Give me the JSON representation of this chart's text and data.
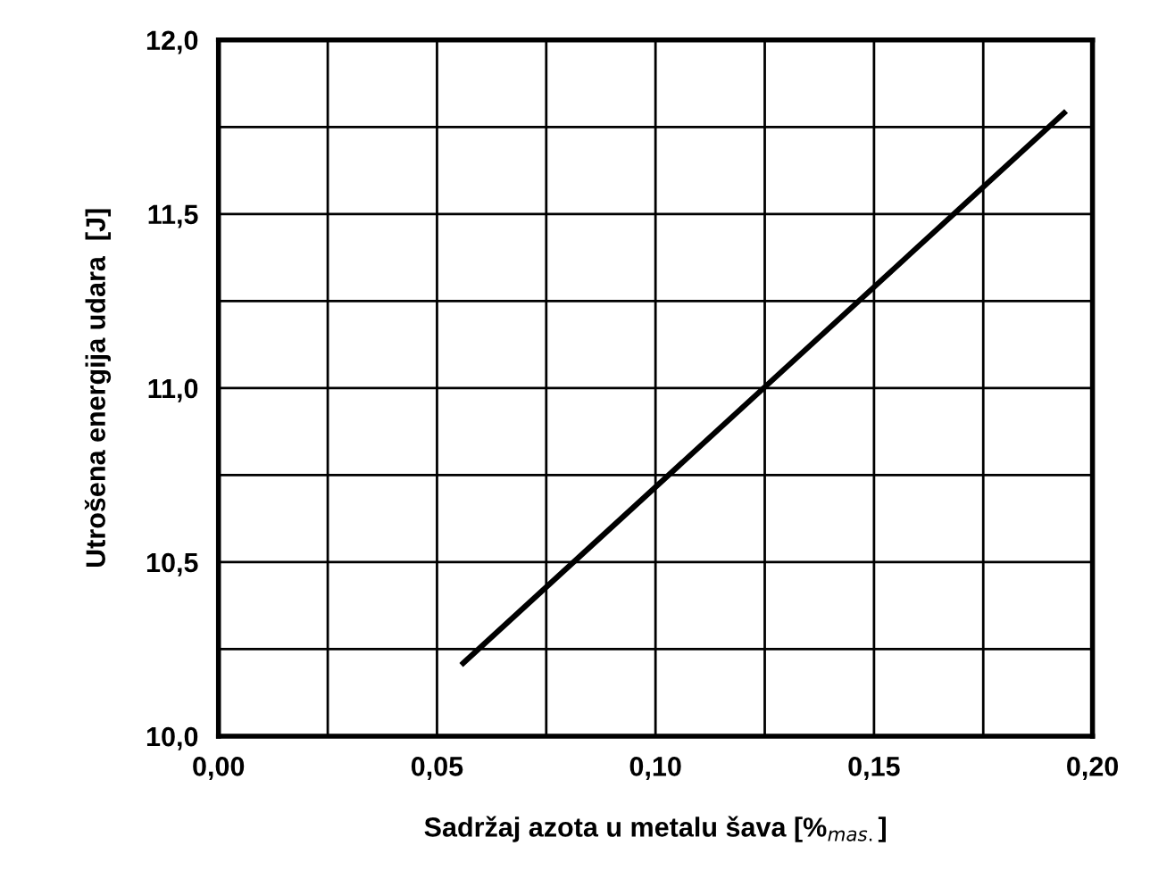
{
  "chart_data": {
    "type": "line",
    "xlabel": "Sadržaj azota u metalu šava [%$_{mas.}$]",
    "ylabel": "Utrošena energija udara  [J]",
    "series": [
      {
        "color": "#000000",
        "x": [
          0.056,
          0.1935
        ],
        "values": [
          10.21,
          11.79
        ]
      }
    ],
    "xlim": [
      0,
      0.2
    ],
    "ylim": [
      10,
      12
    ],
    "xticks": [
      {
        "value": 0,
        "label": "0,00"
      },
      {
        "value": 0.025,
        "label": null
      },
      {
        "value": 0.05,
        "label": "0,05"
      },
      {
        "value": 0.075,
        "label": null
      },
      {
        "value": 0.1,
        "label": "0,10"
      },
      {
        "value": 0.125,
        "label": null
      },
      {
        "value": 0.15,
        "label": "0,15"
      },
      {
        "value": 0.175,
        "label": null
      },
      {
        "value": 0.2,
        "label": "0,20"
      }
    ],
    "yticks": [
      {
        "value": 10,
        "label": "10,0"
      },
      {
        "value": 10.25,
        "label": null
      },
      {
        "value": 10.5,
        "label": "10,5"
      },
      {
        "value": 10.75,
        "label": null
      },
      {
        "value": 11,
        "label": "11,0"
      },
      {
        "value": 11.25,
        "label": null
      },
      {
        "value": 11.5,
        "label": "11,5"
      },
      {
        "value": 11.75,
        "label": null
      },
      {
        "value": 12,
        "label": "12,0"
      }
    ],
    "grid": true,
    "line_style": "solid",
    "marker": "none"
  }
}
